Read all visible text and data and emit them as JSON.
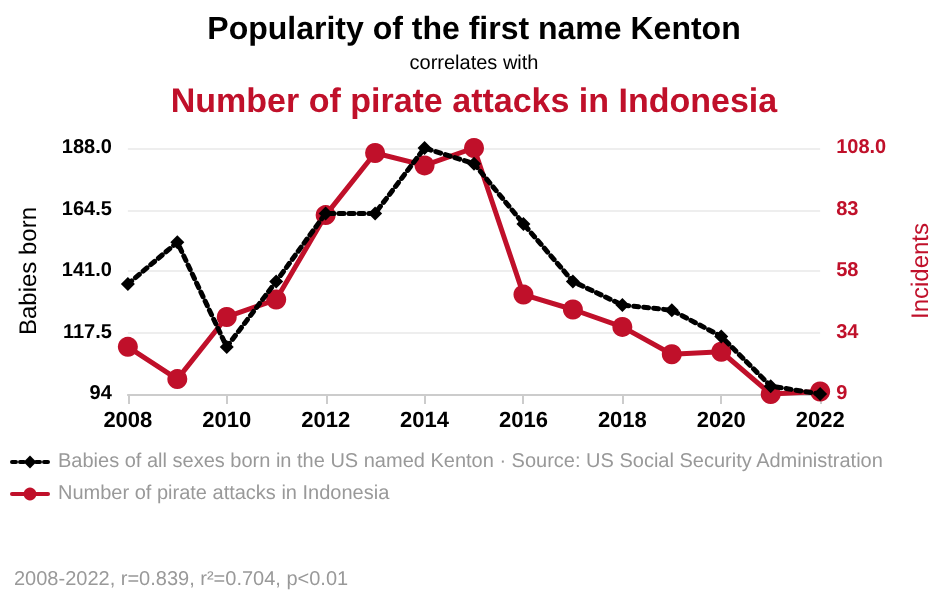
{
  "chart_data": {
    "type": "line",
    "title": "Popularity of the first name Kenton",
    "subtitle": "correlates with",
    "annotations": [
      "Number of pirate attacks in Indonesia",
      "2008-2022, r=0.839, r²=0.704, p<0.01"
    ],
    "ylabel": "Babies born",
    "y2label": "Incidents",
    "x": [
      2008,
      2009,
      2010,
      2011,
      2012,
      2013,
      2014,
      2015,
      2016,
      2017,
      2018,
      2019,
      2020,
      2021,
      2022
    ],
    "xlim": [
      2008,
      2022
    ],
    "xticks": [
      2008,
      2010,
      2012,
      2014,
      2016,
      2018,
      2020,
      2022
    ],
    "ylim": [
      94,
      188
    ],
    "yticks": [
      {
        "value": 94,
        "label": "94"
      },
      {
        "value": 117.5,
        "label": "117.5"
      },
      {
        "value": 141,
        "label": "141.0"
      },
      {
        "value": 164.5,
        "label": "164.5"
      },
      {
        "value": 188,
        "label": "188.0"
      }
    ],
    "y2lim": [
      9,
      108
    ],
    "y2ticks": [
      {
        "value": 9,
        "label": "9"
      },
      {
        "value": 33.75,
        "label": "34"
      },
      {
        "value": 58.5,
        "label": "58"
      },
      {
        "value": 83.25,
        "label": "83"
      },
      {
        "value": 108,
        "label": "108.0"
      }
    ],
    "grid": "y",
    "legend": "bottom",
    "series": [
      {
        "name": "Babies of all sexes born in the US named Kenton · Source: US Social Security Administration",
        "color": "#000000",
        "marker": "diamond",
        "line_style": "dotted",
        "values": [
          136,
          152,
          112,
          137,
          163,
          163,
          188,
          182,
          159,
          137,
          128,
          126,
          116,
          97,
          94
        ]
      },
      {
        "name": "Number of pirate attacks in Indonesia",
        "color": "#c0102a",
        "marker": "circle",
        "line_style": "solid",
        "axis": "y2",
        "values": [
          28,
          15,
          40,
          47,
          81,
          106,
          101,
          108,
          49,
          43,
          36,
          25,
          26,
          9,
          10
        ]
      }
    ]
  }
}
